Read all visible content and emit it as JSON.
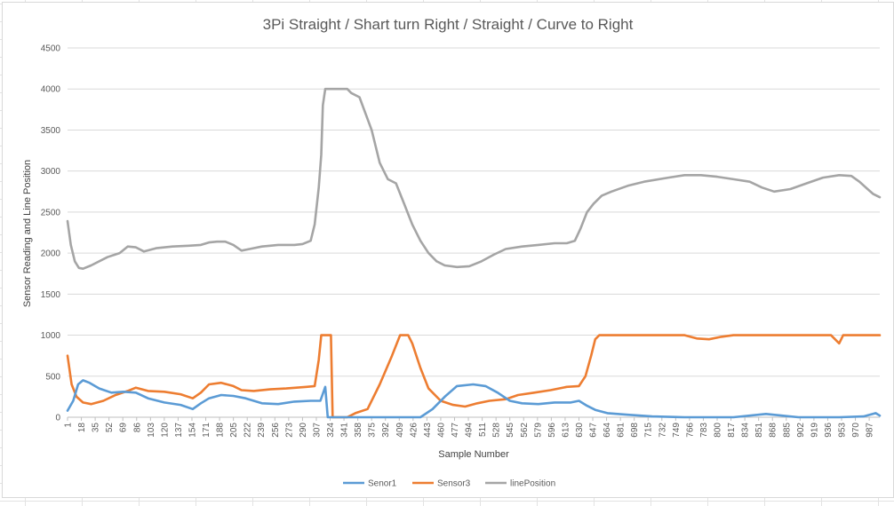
{
  "chart_data": {
    "type": "line",
    "title": "3Pi Straight / Shart turn Right / Straight / Curve to Right",
    "xlabel": "Sample Number",
    "ylabel": "Sensor Reading and Line Position",
    "ylim": [
      0,
      4500
    ],
    "yticks": [
      0,
      500,
      1000,
      1500,
      2000,
      2500,
      3000,
      3500,
      4000,
      4500
    ],
    "xlim": [
      1,
      1000
    ],
    "xticks": [
      1,
      18,
      35,
      52,
      69,
      86,
      103,
      120,
      137,
      154,
      171,
      188,
      205,
      222,
      239,
      256,
      273,
      290,
      307,
      324,
      341,
      358,
      375,
      392,
      409,
      426,
      443,
      460,
      477,
      494,
      511,
      528,
      545,
      562,
      579,
      596,
      613,
      630,
      647,
      664,
      681,
      698,
      715,
      732,
      749,
      766,
      783,
      800,
      817,
      834,
      851,
      868,
      885,
      902,
      919,
      936,
      953,
      970,
      987
    ],
    "grid": true,
    "legend_position": "bottom",
    "series": [
      {
        "name": "Senor1",
        "color": "#5B9BD5",
        "points": [
          [
            1,
            80
          ],
          [
            8,
            200
          ],
          [
            14,
            400
          ],
          [
            20,
            450
          ],
          [
            28,
            420
          ],
          [
            40,
            350
          ],
          [
            55,
            300
          ],
          [
            70,
            310
          ],
          [
            85,
            300
          ],
          [
            100,
            230
          ],
          [
            120,
            180
          ],
          [
            140,
            150
          ],
          [
            155,
            100
          ],
          [
            165,
            170
          ],
          [
            175,
            230
          ],
          [
            190,
            270
          ],
          [
            205,
            260
          ],
          [
            220,
            230
          ],
          [
            240,
            170
          ],
          [
            260,
            160
          ],
          [
            280,
            190
          ],
          [
            300,
            200
          ],
          [
            312,
            200
          ],
          [
            318,
            370
          ],
          [
            321,
            0
          ],
          [
            360,
            0
          ],
          [
            400,
            0
          ],
          [
            435,
            0
          ],
          [
            450,
            100
          ],
          [
            465,
            250
          ],
          [
            480,
            380
          ],
          [
            500,
            400
          ],
          [
            515,
            380
          ],
          [
            530,
            300
          ],
          [
            545,
            200
          ],
          [
            560,
            170
          ],
          [
            580,
            160
          ],
          [
            600,
            180
          ],
          [
            620,
            180
          ],
          [
            630,
            200
          ],
          [
            640,
            140
          ],
          [
            650,
            90
          ],
          [
            665,
            50
          ],
          [
            690,
            30
          ],
          [
            720,
            10
          ],
          [
            760,
            0
          ],
          [
            820,
            0
          ],
          [
            860,
            40
          ],
          [
            880,
            20
          ],
          [
            900,
            0
          ],
          [
            950,
            0
          ],
          [
            980,
            10
          ],
          [
            995,
            50
          ],
          [
            1000,
            20
          ]
        ]
      },
      {
        "name": "Sensor3",
        "color": "#ED7D31",
        "points": [
          [
            1,
            750
          ],
          [
            6,
            400
          ],
          [
            12,
            250
          ],
          [
            20,
            180
          ],
          [
            30,
            160
          ],
          [
            45,
            200
          ],
          [
            60,
            270
          ],
          [
            75,
            320
          ],
          [
            85,
            360
          ],
          [
            100,
            320
          ],
          [
            120,
            310
          ],
          [
            140,
            280
          ],
          [
            155,
            230
          ],
          [
            165,
            300
          ],
          [
            175,
            400
          ],
          [
            190,
            420
          ],
          [
            205,
            380
          ],
          [
            215,
            330
          ],
          [
            230,
            320
          ],
          [
            250,
            340
          ],
          [
            270,
            350
          ],
          [
            295,
            370
          ],
          [
            305,
            380
          ],
          [
            310,
            700
          ],
          [
            313,
            1000
          ],
          [
            325,
            1000
          ],
          [
            327,
            0
          ],
          [
            345,
            0
          ],
          [
            355,
            50
          ],
          [
            370,
            100
          ],
          [
            385,
            400
          ],
          [
            400,
            750
          ],
          [
            410,
            1000
          ],
          [
            420,
            1000
          ],
          [
            425,
            900
          ],
          [
            435,
            600
          ],
          [
            445,
            350
          ],
          [
            460,
            200
          ],
          [
            475,
            150
          ],
          [
            490,
            130
          ],
          [
            505,
            170
          ],
          [
            520,
            200
          ],
          [
            540,
            220
          ],
          [
            555,
            270
          ],
          [
            575,
            300
          ],
          [
            595,
            330
          ],
          [
            615,
            370
          ],
          [
            630,
            380
          ],
          [
            638,
            500
          ],
          [
            645,
            750
          ],
          [
            650,
            950
          ],
          [
            655,
            1000
          ],
          [
            700,
            1000
          ],
          [
            760,
            1000
          ],
          [
            775,
            960
          ],
          [
            790,
            950
          ],
          [
            805,
            980
          ],
          [
            820,
            1000
          ],
          [
            880,
            1000
          ],
          [
            940,
            1000
          ],
          [
            950,
            900
          ],
          [
            955,
            1000
          ],
          [
            1000,
            1000
          ]
        ]
      },
      {
        "name": "linePosition",
        "color": "#A5A5A5",
        "points": [
          [
            1,
            2390
          ],
          [
            5,
            2100
          ],
          [
            10,
            1900
          ],
          [
            15,
            1820
          ],
          [
            20,
            1810
          ],
          [
            30,
            1850
          ],
          [
            50,
            1950
          ],
          [
            65,
            2000
          ],
          [
            75,
            2080
          ],
          [
            85,
            2070
          ],
          [
            95,
            2020
          ],
          [
            110,
            2060
          ],
          [
            130,
            2080
          ],
          [
            150,
            2090
          ],
          [
            165,
            2100
          ],
          [
            175,
            2130
          ],
          [
            185,
            2140
          ],
          [
            195,
            2140
          ],
          [
            205,
            2100
          ],
          [
            215,
            2030
          ],
          [
            225,
            2050
          ],
          [
            240,
            2080
          ],
          [
            260,
            2100
          ],
          [
            280,
            2100
          ],
          [
            290,
            2110
          ],
          [
            300,
            2150
          ],
          [
            305,
            2350
          ],
          [
            310,
            2800
          ],
          [
            313,
            3200
          ],
          [
            315,
            3800
          ],
          [
            318,
            4000
          ],
          [
            345,
            4000
          ],
          [
            350,
            3950
          ],
          [
            360,
            3900
          ],
          [
            375,
            3500
          ],
          [
            385,
            3100
          ],
          [
            395,
            2900
          ],
          [
            405,
            2850
          ],
          [
            415,
            2600
          ],
          [
            425,
            2350
          ],
          [
            435,
            2150
          ],
          [
            445,
            2000
          ],
          [
            455,
            1900
          ],
          [
            465,
            1850
          ],
          [
            480,
            1830
          ],
          [
            495,
            1840
          ],
          [
            510,
            1900
          ],
          [
            525,
            1980
          ],
          [
            540,
            2050
          ],
          [
            560,
            2080
          ],
          [
            580,
            2100
          ],
          [
            600,
            2120
          ],
          [
            615,
            2120
          ],
          [
            625,
            2150
          ],
          [
            632,
            2300
          ],
          [
            640,
            2500
          ],
          [
            648,
            2600
          ],
          [
            658,
            2700
          ],
          [
            670,
            2750
          ],
          [
            690,
            2820
          ],
          [
            710,
            2870
          ],
          [
            740,
            2920
          ],
          [
            760,
            2950
          ],
          [
            780,
            2950
          ],
          [
            800,
            2930
          ],
          [
            820,
            2900
          ],
          [
            840,
            2870
          ],
          [
            855,
            2800
          ],
          [
            870,
            2750
          ],
          [
            890,
            2780
          ],
          [
            910,
            2850
          ],
          [
            930,
            2920
          ],
          [
            950,
            2950
          ],
          [
            965,
            2940
          ],
          [
            975,
            2870
          ],
          [
            985,
            2780
          ],
          [
            992,
            2720
          ],
          [
            1000,
            2680
          ]
        ]
      }
    ]
  }
}
